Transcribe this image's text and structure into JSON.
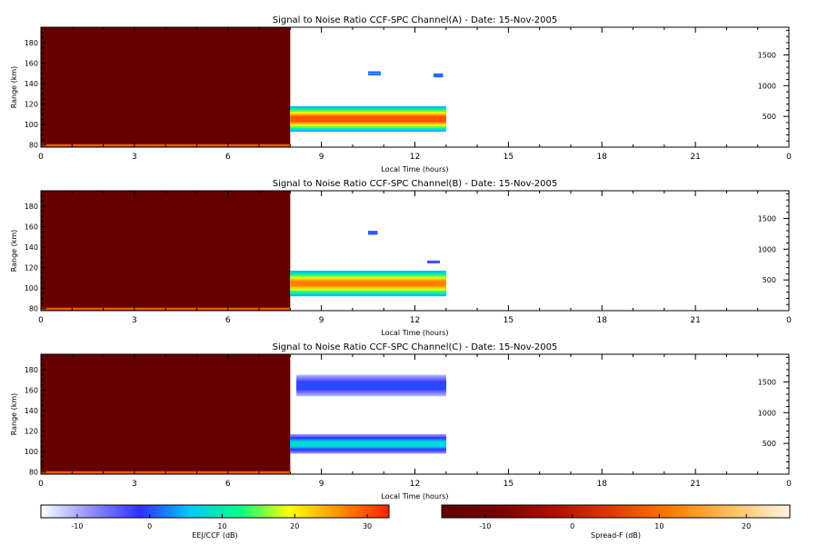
{
  "chart_data": [
    {
      "type": "heatmap",
      "title": "Signal to Noise Ratio CCF-SPC Channel(A) - Date: 15-Nov-2005",
      "xlabel": "Local Time (hours)",
      "ylabel": "Range (km)",
      "xlim": [
        0,
        24
      ],
      "ylim": [
        78,
        195
      ],
      "y2lim": [
        0,
        1950
      ],
      "xticks": [
        "0",
        "3",
        "6",
        "9",
        "12",
        "15",
        "18",
        "21",
        "0"
      ],
      "yticks": [
        80,
        100,
        120,
        140,
        160,
        180
      ],
      "y2ticks": [
        500,
        1000,
        1500
      ],
      "spread_f_block": {
        "x_start": 0,
        "x_end": 8.0,
        "level_db": -13
      },
      "bands": [
        {
          "x_start": 8.0,
          "x_end": 13.0,
          "y_low": 93,
          "y_high": 118,
          "peak_db": 30,
          "edge_db": 5
        },
        {
          "x_start": 10.5,
          "x_end": 10.9,
          "y_low": 148,
          "y_high": 152,
          "peak_db": 5,
          "edge_db": -5
        },
        {
          "x_start": 12.6,
          "x_end": 12.9,
          "y_low": 146,
          "y_high": 150,
          "peak_db": 3,
          "edge_db": -6
        }
      ]
    },
    {
      "type": "heatmap",
      "title": "Signal to Noise Ratio CCF-SPC Channel(B) - Date: 15-Nov-2005",
      "xlabel": "Local Time (hours)",
      "ylabel": "Range (km)",
      "xlim": [
        0,
        24
      ],
      "ylim": [
        78,
        195
      ],
      "y2lim": [
        0,
        1950
      ],
      "xticks": [
        "0",
        "3",
        "6",
        "9",
        "12",
        "15",
        "18",
        "21",
        "0"
      ],
      "yticks": [
        80,
        100,
        120,
        140,
        160,
        180
      ],
      "y2ticks": [
        500,
        1000,
        1500
      ],
      "spread_f_block": {
        "x_start": 0,
        "x_end": 8.0,
        "level_db": -13
      },
      "bands": [
        {
          "x_start": 8.0,
          "x_end": 13.0,
          "y_low": 92,
          "y_high": 117,
          "peak_db": 27,
          "edge_db": 5
        },
        {
          "x_start": 10.5,
          "x_end": 10.8,
          "y_low": 152,
          "y_high": 156,
          "peak_db": 2,
          "edge_db": -6
        },
        {
          "x_start": 12.4,
          "x_end": 12.8,
          "y_low": 124,
          "y_high": 127,
          "peak_db": 0,
          "edge_db": -8
        }
      ]
    },
    {
      "type": "heatmap",
      "title": "Signal to Noise Ratio CCF-SPC Channel(C) - Date: 15-Nov-2005",
      "xlabel": "Local Time (hours)",
      "ylabel": "Range (km)",
      "xlim": [
        0,
        24
      ],
      "ylim": [
        78,
        195
      ],
      "y2lim": [
        0,
        1950
      ],
      "xticks": [
        "0",
        "3",
        "6",
        "9",
        "12",
        "15",
        "18",
        "21",
        "0"
      ],
      "yticks": [
        80,
        100,
        120,
        140,
        160,
        180
      ],
      "y2ticks": [
        500,
        1000,
        1500
      ],
      "spread_f_block": {
        "x_start": 0,
        "x_end": 8.0,
        "level_db": -13
      },
      "bands": [
        {
          "x_start": 8.0,
          "x_end": 13.0,
          "y_low": 98,
          "y_high": 117,
          "peak_db": 8,
          "edge_db": -8
        },
        {
          "x_start": 8.2,
          "x_end": 13.0,
          "y_low": 154,
          "y_high": 175,
          "peak_db": 0,
          "edge_db": -10
        }
      ]
    }
  ],
  "colorbars": [
    {
      "label": "EEJ/CCF (dB)",
      "range": [
        -15,
        33
      ],
      "ticks": [
        -10,
        0,
        10,
        20,
        30
      ],
      "colormap": [
        "#ffffff",
        "#9090ff",
        "#3030ff",
        "#00c8ff",
        "#00ff80",
        "#ffff00",
        "#ff9000",
        "#ff2000"
      ]
    },
    {
      "label": "Spread-F (dB)",
      "range": [
        -15,
        25
      ],
      "ticks": [
        -10,
        0,
        10,
        20
      ],
      "colormap": [
        "#5a0000",
        "#7a0000",
        "#b01000",
        "#e04000",
        "#ff8000",
        "#ffc060",
        "#fff4e0"
      ]
    }
  ]
}
